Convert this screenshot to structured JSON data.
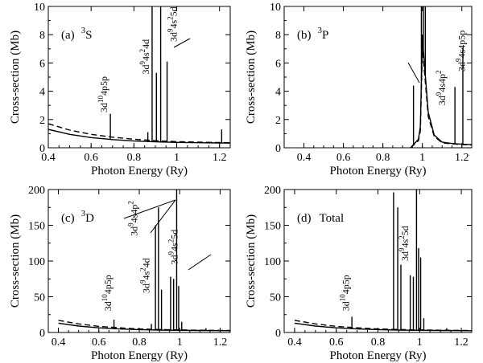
{
  "chart_data": [
    {
      "type": "line",
      "panel": "a",
      "label": "(a)",
      "symbol": "3S",
      "sup": "3",
      "term": "S",
      "xlabel": "Photon Energy (Ry)",
      "ylabel": "Cross-section (Mb)",
      "xlim": [
        0.4,
        1.25
      ],
      "ylim": [
        0,
        10
      ],
      "xticks": [
        0.4,
        0.6,
        0.8,
        1,
        1.2
      ],
      "xtick_labels": [
        "0.4",
        "0.6",
        "0.8",
        "1",
        "1.2"
      ],
      "yticks": [
        0,
        2,
        4,
        6,
        8,
        10
      ],
      "ytick_labels": [
        "0",
        "2",
        "4",
        "6",
        "8",
        "10"
      ],
      "series": [
        {
          "name": "solid",
          "style": "solid",
          "x": [
            0.4,
            0.5,
            0.6,
            0.7,
            0.8,
            0.9,
            1.0,
            1.1,
            1.2,
            1.25
          ],
          "values": [
            1.3,
            0.95,
            0.72,
            0.58,
            0.48,
            0.42,
            0.38,
            0.36,
            0.34,
            0.33
          ]
        },
        {
          "name": "dashed",
          "style": "dashed",
          "x": [
            0.4,
            0.5,
            0.6,
            0.7,
            0.8,
            0.9,
            1.0,
            1.1,
            1.2,
            1.25
          ],
          "values": [
            1.7,
            1.25,
            0.95,
            0.75,
            0.6,
            0.5,
            0.44,
            0.4,
            0.37,
            0.36
          ]
        }
      ],
      "peaks": [
        {
          "x": 0.69,
          "y": 2.4
        },
        {
          "x": 0.865,
          "y": 1.1
        },
        {
          "x": 0.885,
          "y": 10
        },
        {
          "x": 0.905,
          "y": 5.3
        },
        {
          "x": 0.925,
          "y": 10
        },
        {
          "x": 0.955,
          "y": 6.1
        },
        {
          "x": 1.21,
          "y": 1.3
        }
      ],
      "annotations": [
        {
          "text": "3d10 4p5p",
          "parts": [
            [
              "3d",
              ""
            ],
            [
              "10",
              "sup"
            ],
            [
              "4p5p",
              ""
            ]
          ],
          "x": 0.675,
          "y": 2.5
        },
        {
          "text": "3d9 4s2 4d",
          "parts": [
            [
              "3d",
              ""
            ],
            [
              "9",
              "sup"
            ],
            [
              "4s",
              ""
            ],
            [
              "2",
              "sup"
            ],
            [
              "4d",
              ""
            ]
          ],
          "x": 0.87,
          "y": 5.2
        },
        {
          "text": "3d9 4s2 5d",
          "parts": [
            [
              "3d",
              ""
            ],
            [
              "9",
              "sup"
            ],
            [
              "4s",
              ""
            ],
            [
              "2",
              "sup"
            ],
            [
              "5d",
              ""
            ]
          ],
          "x": 1.0,
          "y": 7.5
        }
      ]
    },
    {
      "type": "line",
      "panel": "b",
      "label": "(b)",
      "symbol": "3P",
      "sup": "3",
      "term": "P",
      "xlabel": "Photon Energy (Ry)",
      "ylabel": "Cross-section (Mb)",
      "xlim": [
        0.3,
        1.25
      ],
      "ylim": [
        0,
        10
      ],
      "xticks": [
        0.4,
        0.6,
        0.8,
        1,
        1.2
      ],
      "xtick_labels": [
        "0.4",
        "0.6",
        "0.8",
        "1",
        "1.2"
      ],
      "yticks": [
        0,
        2,
        4,
        6,
        8,
        10
      ],
      "ytick_labels": [
        "0",
        "2",
        "4",
        "6",
        "8",
        "10"
      ],
      "series": [
        {
          "name": "solid",
          "style": "solid",
          "x": [
            0.94,
            0.96,
            0.98,
            0.99,
            1.0,
            1.01,
            1.03,
            1.06,
            1.1,
            1.15,
            1.2,
            1.25
          ],
          "values": [
            0.0,
            0.3,
            0.6,
            1.5,
            8.0,
            6.0,
            2.5,
            0.9,
            0.4,
            0.3,
            0.25,
            0.22
          ]
        },
        {
          "name": "dashed",
          "style": "dashed",
          "x": [
            0.94,
            0.96,
            0.98,
            0.99,
            1.0,
            1.01,
            1.03,
            1.06,
            1.1,
            1.15,
            1.2,
            1.25
          ],
          "values": [
            0.0,
            0.25,
            0.5,
            1.2,
            7.0,
            5.5,
            2.2,
            0.8,
            0.35,
            0.28,
            0.22,
            0.2
          ]
        }
      ],
      "peaks": [
        {
          "x": 0.955,
          "y": 4.4
        },
        {
          "x": 0.995,
          "y": 10
        },
        {
          "x": 1.005,
          "y": 10
        },
        {
          "x": 1.015,
          "y": 10
        },
        {
          "x": 1.165,
          "y": 4.3
        },
        {
          "x": 1.205,
          "y": 7.1
        }
      ],
      "annotations": [
        {
          "text": "3d9 4s4p2",
          "parts": [
            [
              "3d",
              ""
            ],
            [
              "9",
              "sup"
            ],
            [
              "4s4p",
              ""
            ],
            [
              "2",
              "sup"
            ]
          ],
          "x": 1.115,
          "y": 3.0
        },
        {
          "text": "3d9 4s4p5p",
          "parts": [
            [
              "3d",
              ""
            ],
            [
              "9",
              "sup"
            ],
            [
              "4s4p5p",
              ""
            ]
          ],
          "x": 1.215,
          "y": 5.4
        }
      ]
    },
    {
      "type": "line",
      "panel": "c",
      "label": "(c)",
      "symbol": "3D",
      "sup": "3",
      "term": "D",
      "xlabel": "Photon Energy (Ry)",
      "ylabel": "Cross-section (Mb)",
      "xlim": [
        0.35,
        1.25
      ],
      "ylim": [
        0,
        200
      ],
      "xticks": [
        0.4,
        0.6,
        0.8,
        1,
        1.2
      ],
      "xtick_labels": [
        "0.4",
        "0.6",
        "0.8",
        "1",
        "1.2"
      ],
      "yticks": [
        0,
        50,
        100,
        150,
        200
      ],
      "ytick_labels": [
        "0",
        "50",
        "100",
        "150",
        "200"
      ],
      "series": [
        {
          "name": "solid",
          "style": "solid",
          "x": [
            0.4,
            0.5,
            0.6,
            0.7,
            0.8,
            0.9,
            1.0,
            1.1,
            1.2,
            1.25
          ],
          "values": [
            13,
            9,
            6.5,
            5,
            4,
            3.4,
            3,
            2.8,
            2.6,
            2.5
          ]
        },
        {
          "name": "dashed",
          "style": "dashed",
          "x": [
            0.4,
            0.5,
            0.6,
            0.7,
            0.8,
            0.9,
            1.0,
            1.1,
            1.2,
            1.25
          ],
          "values": [
            17,
            12,
            8.5,
            6.5,
            5,
            4.2,
            3.6,
            3.2,
            2.9,
            2.8
          ]
        }
      ],
      "peaks": [
        {
          "x": 0.675,
          "y": 18
        },
        {
          "x": 0.86,
          "y": 12
        },
        {
          "x": 0.88,
          "y": 150
        },
        {
          "x": 0.895,
          "y": 175
        },
        {
          "x": 0.91,
          "y": 60
        },
        {
          "x": 0.955,
          "y": 78
        },
        {
          "x": 0.97,
          "y": 75
        },
        {
          "x": 0.985,
          "y": 200
        },
        {
          "x": 0.995,
          "y": 65
        },
        {
          "x": 1.01,
          "y": 15
        },
        {
          "x": 1.13,
          "y": 6
        }
      ],
      "annotations": [
        {
          "text": "3d10 4p5p",
          "parts": [
            [
              "3d",
              ""
            ],
            [
              "10",
              "sup"
            ],
            [
              "4p5p",
              ""
            ]
          ],
          "x": 0.66,
          "y": 30
        },
        {
          "text": "3d9 4s2 4d",
          "parts": [
            [
              "3d",
              ""
            ],
            [
              "9",
              "sup"
            ],
            [
              "4s",
              ""
            ],
            [
              "2",
              "sup"
            ],
            [
              "4d",
              ""
            ]
          ],
          "x": 0.85,
          "y": 55
        },
        {
          "text": "3d9 4s4p2",
          "parts": [
            [
              "3d",
              ""
            ],
            [
              "9",
              "sup"
            ],
            [
              "4s4p",
              ""
            ],
            [
              "2",
              "sup"
            ]
          ],
          "x": 0.79,
          "y": 135
        },
        {
          "text": "3d9 4s2 5d",
          "parts": [
            [
              "3d",
              ""
            ],
            [
              "9",
              "sup"
            ],
            [
              "4s",
              ""
            ],
            [
              "2",
              "sup"
            ],
            [
              "5d",
              ""
            ]
          ],
          "x": 0.99,
          "y": 95
        }
      ]
    },
    {
      "type": "line",
      "panel": "d",
      "label": "(d)",
      "symbol": "Total",
      "sup": "",
      "term": "Total",
      "xlabel": "Photon Energy (Ry)",
      "ylabel": "Cross-section (Mb)",
      "xlim": [
        0.35,
        1.25
      ],
      "ylim": [
        0,
        200
      ],
      "xticks": [
        0.4,
        0.6,
        0.8,
        1,
        1.2
      ],
      "xtick_labels": [
        "0.4",
        "0.6",
        "0.8",
        "1",
        "1.2"
      ],
      "yticks": [
        0,
        50,
        100,
        150,
        200
      ],
      "ytick_labels": [
        "0",
        "50",
        "100",
        "150",
        "200"
      ],
      "series": [
        {
          "name": "solid",
          "style": "solid",
          "x": [
            0.4,
            0.5,
            0.6,
            0.7,
            0.8,
            0.9,
            1.0,
            1.1,
            1.2,
            1.25
          ],
          "values": [
            13,
            9,
            6.5,
            5,
            4,
            3.4,
            3,
            2.8,
            2.6,
            2.5
          ]
        },
        {
          "name": "dashed",
          "style": "dashed",
          "x": [
            0.4,
            0.5,
            0.6,
            0.7,
            0.8,
            0.9,
            1.0,
            1.1,
            1.2,
            1.25
          ],
          "values": [
            17,
            12,
            8.5,
            6.5,
            5,
            4.2,
            3.6,
            3.2,
            2.9,
            2.8
          ]
        }
      ],
      "peaks": [
        {
          "x": 0.675,
          "y": 22
        },
        {
          "x": 0.875,
          "y": 196
        },
        {
          "x": 0.895,
          "y": 175
        },
        {
          "x": 0.91,
          "y": 95
        },
        {
          "x": 0.955,
          "y": 80
        },
        {
          "x": 0.97,
          "y": 78
        },
        {
          "x": 0.985,
          "y": 200
        },
        {
          "x": 0.995,
          "y": 118
        },
        {
          "x": 1.005,
          "y": 105
        },
        {
          "x": 1.02,
          "y": 20
        },
        {
          "x": 1.13,
          "y": 6
        }
      ],
      "annotations": [
        {
          "text": "3d10 4p5p",
          "parts": [
            [
              "3d",
              ""
            ],
            [
              "10",
              "sup"
            ],
            [
              "4p5p",
              ""
            ]
          ],
          "x": 0.66,
          "y": 30
        },
        {
          "text": "3d9 4s2 5d",
          "parts": [
            [
              "3d",
              ""
            ],
            [
              "9",
              "sup"
            ],
            [
              "4s",
              ""
            ],
            [
              "2",
              "sup"
            ],
            [
              "5d",
              ""
            ]
          ],
          "x": 0.945,
          "y": 100
        }
      ]
    }
  ]
}
